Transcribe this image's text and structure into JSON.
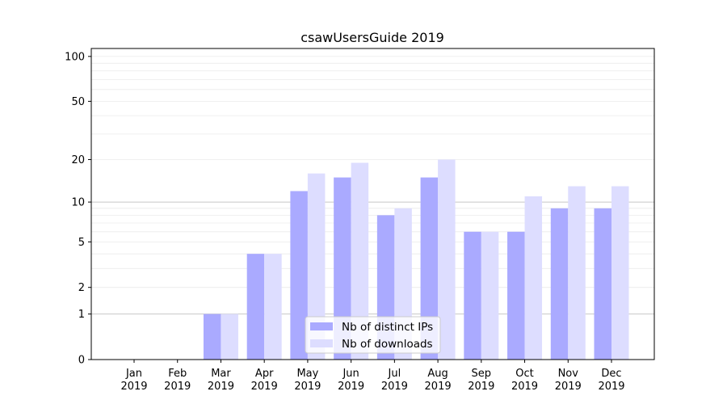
{
  "chart_data": {
    "type": "bar",
    "title": "csawUsersGuide 2019",
    "xlabel": "",
    "ylabel": "",
    "yscale": "symlog (log10(1+y))",
    "ylim": [
      0,
      113
    ],
    "yticks": [
      0,
      1,
      2,
      5,
      10,
      20,
      50,
      100
    ],
    "grid": "horizontal",
    "legend": "bottom-center",
    "categories": [
      "Jan\n2019",
      "Feb\n2019",
      "Mar\n2019",
      "Apr\n2019",
      "May\n2019",
      "Jun\n2019",
      "Jul\n2019",
      "Aug\n2019",
      "Sep\n2019",
      "Oct\n2019",
      "Nov\n2019",
      "Dec\n2019"
    ],
    "series": [
      {
        "name": "Nb of distinct IPs",
        "color": "#aaaaff",
        "values": [
          0,
          0,
          1,
          4,
          12,
          15,
          8,
          15,
          6,
          6,
          9,
          9
        ]
      },
      {
        "name": "Nb of downloads",
        "color": "#ddddff",
        "values": [
          0,
          0,
          1,
          4,
          16,
          19,
          9,
          20,
          6,
          11,
          13,
          13
        ]
      }
    ]
  }
}
